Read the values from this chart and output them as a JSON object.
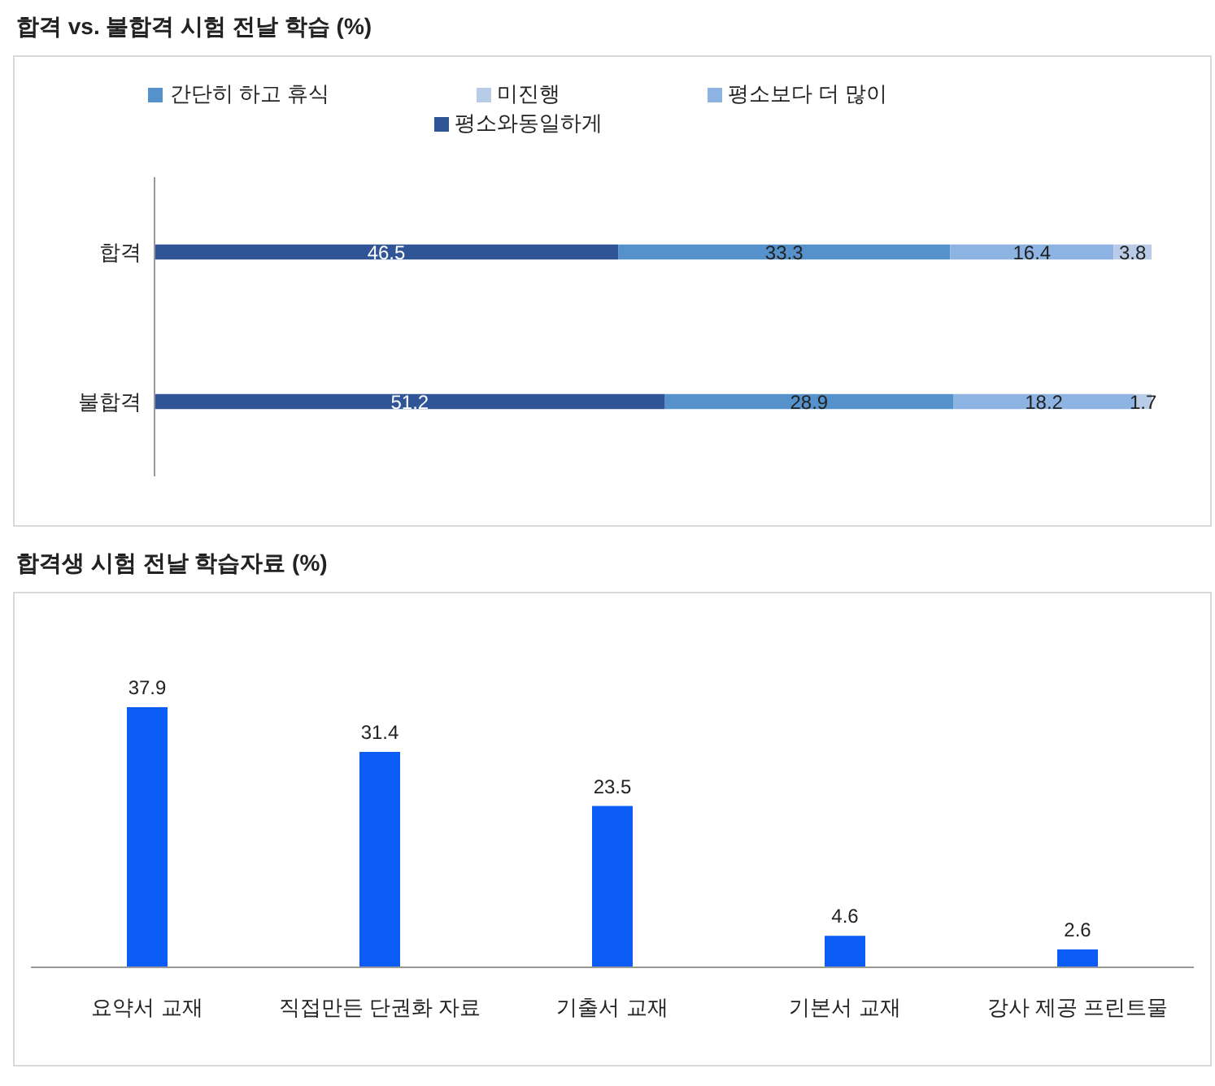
{
  "chart_data": [
    {
      "type": "bar",
      "title": "합격 vs. 불합격 시험 전날 학습 (%)",
      "orientation": "horizontal",
      "stacked": true,
      "categories": [
        "합격",
        "불합격"
      ],
      "series": [
        {
          "name": "평소와동일하게",
          "color": "#2f5597",
          "values": [
            46.5,
            51.2
          ]
        },
        {
          "name": "간단히 하고 휴식",
          "color": "#5592cc",
          "values": [
            33.3,
            28.9
          ]
        },
        {
          "name": "평소보다 더 많이",
          "color": "#8db3e2",
          "values": [
            16.4,
            18.2
          ]
        },
        {
          "name": "미진행",
          "color": "#b8cce8",
          "values": [
            3.8,
            1.7
          ]
        }
      ],
      "data_labels": true,
      "legend": "top"
    },
    {
      "type": "bar",
      "title": "합격생 시험 전날 학습자료 (%)",
      "categories": [
        "요약서 교재",
        "직접만든 단권화 자료",
        "기출서 교재",
        "기본서 교재",
        "강사 제공 프린트물"
      ],
      "values": [
        37.9,
        31.4,
        23.5,
        4.6,
        2.6
      ],
      "color": "#0a5cf5",
      "data_labels": true
    }
  ]
}
